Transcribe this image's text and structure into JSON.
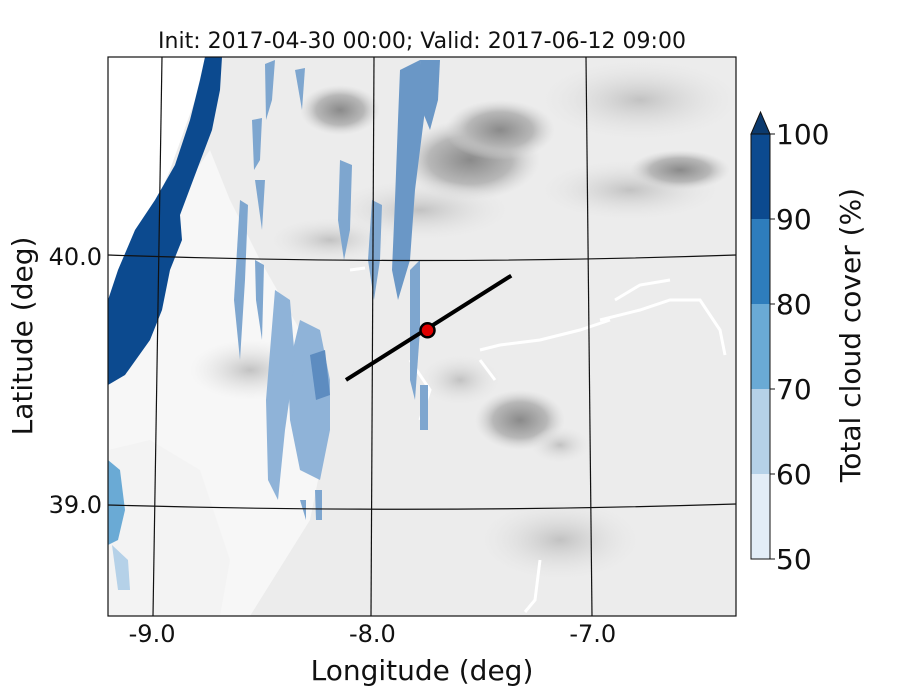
{
  "title": "Init: 2017-04-30 00:00; Valid: 2017-06-12 09:00",
  "map": {
    "xlabel": "Longitude (deg)",
    "ylabel": "Latitude (deg)",
    "x_ticks": [
      {
        "value": -9.0,
        "label": "-9.0"
      },
      {
        "value": -8.0,
        "label": "-8.0"
      },
      {
        "value": -7.0,
        "label": "-7.0"
      }
    ],
    "y_ticks": [
      {
        "value": 40.0,
        "label": "40.0"
      },
      {
        "value": 39.0,
        "label": "39.0"
      }
    ],
    "xlim": [
      -9.2,
      -6.35
    ],
    "ylim": [
      38.55,
      40.8
    ],
    "point_marker": {
      "lon": -7.75,
      "lat": 39.7,
      "color": "#e00000"
    },
    "cross_section_line": {
      "start": [
        -8.12,
        39.5
      ],
      "end": [
        -7.37,
        39.92
      ],
      "color": "#000000"
    }
  },
  "colorbar": {
    "label": "Total cloud cover (%)",
    "min": 50,
    "max": 100,
    "extend": "max",
    "ticks": [
      "50",
      "60",
      "70",
      "80",
      "90",
      "100"
    ],
    "colors": [
      "#e3edf7",
      "#b5d1e8",
      "#6aaad5",
      "#2e7dbc",
      "#0c4a8f"
    ],
    "extend_color": "#0b3a6e"
  },
  "colors": {
    "background_terrain": "#efefef",
    "cloud_light": "#7ea6cf",
    "cloud_dense": "#0c4a8f",
    "ocean": "#ffffff"
  }
}
